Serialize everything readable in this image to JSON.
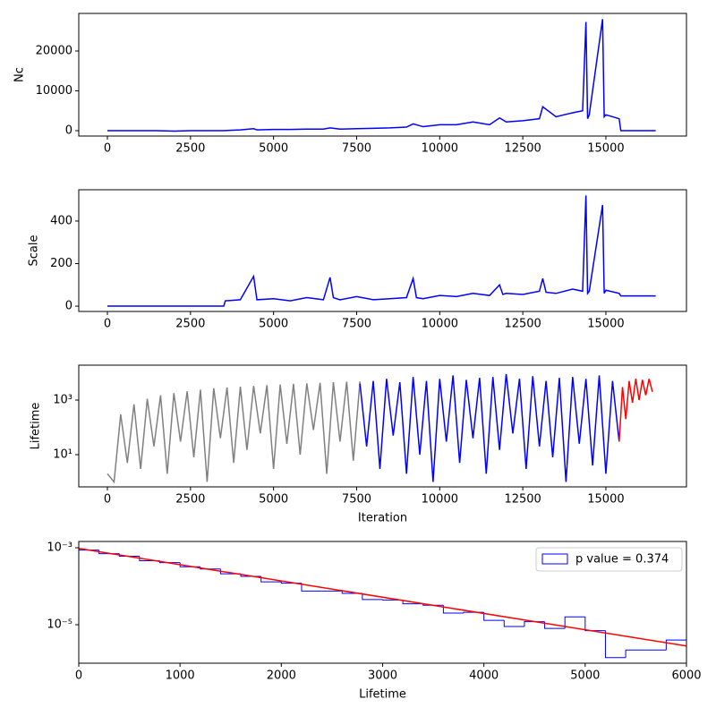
{
  "chart_data": [
    {
      "type": "line",
      "ylabel": "Nc",
      "xlim": [
        -862,
        17425
      ],
      "ylim": [
        -1348,
        29438
      ],
      "xticks": [
        0,
        2500,
        5000,
        7500,
        10000,
        12500,
        15000
      ],
      "yticks": [
        0,
        10000,
        20000
      ],
      "series": [
        {
          "color": "#0000ff",
          "x": [
            0,
            500,
            1000,
            1500,
            2000,
            2500,
            3000,
            3500,
            4000,
            4400,
            4500,
            5000,
            5500,
            6000,
            6500,
            6700,
            7000,
            7500,
            8000,
            8500,
            9000,
            9200,
            9500,
            10000,
            10500,
            11000,
            11500,
            11800,
            12000,
            12500,
            13000,
            13100,
            13500,
            14000,
            14300,
            14400,
            14450,
            14500,
            14900,
            14950,
            15000,
            15400,
            15450,
            16500
          ],
          "values": [
            0,
            0,
            0,
            0,
            -100,
            0,
            0,
            0,
            200,
            500,
            200,
            300,
            300,
            400,
            400,
            700,
            400,
            500,
            600,
            700,
            900,
            1700,
            1000,
            1500,
            1500,
            2200,
            1500,
            3200,
            2200,
            2500,
            3000,
            6000,
            3500,
            4500,
            5000,
            27300,
            3000,
            4000,
            28000,
            3500,
            4000,
            3000,
            0,
            0
          ]
        }
      ]
    },
    {
      "type": "line",
      "ylabel": "Scale",
      "xlim": [
        -862,
        17425
      ],
      "ylim": [
        -25,
        547
      ],
      "xticks": [
        0,
        2500,
        5000,
        7500,
        10000,
        12500,
        15000
      ],
      "yticks": [
        0,
        200,
        400
      ],
      "series": [
        {
          "color": "#0000ff",
          "x": [
            0,
            3500,
            3550,
            4000,
            4400,
            4500,
            5000,
            5500,
            6000,
            6500,
            6700,
            6800,
            7000,
            7500,
            8000,
            8500,
            9000,
            9200,
            9300,
            9500,
            10000,
            10500,
            11000,
            11500,
            11800,
            11900,
            12000,
            12500,
            13000,
            13100,
            13200,
            13500,
            14000,
            14300,
            14400,
            14450,
            14500,
            14900,
            14950,
            15000,
            15400,
            15450,
            16500
          ],
          "values": [
            0,
            0,
            25,
            30,
            140,
            30,
            35,
            25,
            40,
            30,
            135,
            40,
            30,
            45,
            30,
            35,
            40,
            130,
            40,
            35,
            50,
            45,
            60,
            50,
            100,
            55,
            60,
            55,
            70,
            130,
            65,
            60,
            80,
            70,
            520,
            60,
            70,
            475,
            60,
            75,
            60,
            48,
            48
          ]
        }
      ]
    },
    {
      "type": "line",
      "ylabel": "Lifetime",
      "xlabel": "Iteration",
      "yscale": "log",
      "xlim": [
        -862,
        17425
      ],
      "ylim": [
        0.66,
        19000
      ],
      "xticks": [
        0,
        2500,
        5000,
        7500,
        10000,
        12500,
        15000
      ],
      "yticks": [
        {
          "value": 10,
          "label": "10¹"
        },
        {
          "value": 1000,
          "label": "10³"
        }
      ],
      "series": [
        {
          "color": "#808080",
          "x": [
            0,
            200,
            400,
            600,
            800,
            1000,
            1200,
            1400,
            1600,
            1800,
            2000,
            2200,
            2400,
            2600,
            2800,
            3000,
            3200,
            3400,
            3600,
            3800,
            4000,
            4200,
            4400,
            4600,
            4800,
            5000,
            5200,
            5400,
            5600,
            5800,
            6000,
            6200,
            6400,
            6600,
            6800,
            7000,
            7200,
            7400,
            7600
          ],
          "values": [
            2,
            1,
            300,
            5,
            700,
            3,
            1100,
            20,
            1500,
            2,
            1800,
            30,
            2100,
            8,
            2400,
            1,
            2700,
            40,
            2900,
            5,
            3100,
            15,
            3300,
            60,
            3500,
            3,
            3700,
            25,
            3900,
            10,
            4100,
            80,
            4300,
            2,
            4500,
            30,
            4700,
            6,
            4800
          ]
        },
        {
          "color": "#0000ff",
          "x": [
            7600,
            7800,
            8000,
            8200,
            8400,
            8600,
            8800,
            9000,
            9200,
            9400,
            9600,
            9800,
            10000,
            10200,
            10400,
            10600,
            10800,
            11000,
            11200,
            11400,
            11600,
            11800,
            12000,
            12200,
            12400,
            12600,
            12800,
            13000,
            13200,
            13400,
            13600,
            13800,
            14000,
            14200,
            14400,
            14600,
            14800,
            15000,
            15200,
            15400
          ],
          "values": [
            4000,
            20,
            5000,
            3,
            6000,
            50,
            4500,
            2,
            7000,
            10,
            5000,
            1,
            6000,
            30,
            8000,
            5,
            5500,
            40,
            6500,
            2,
            7000,
            15,
            9000,
            60,
            6000,
            3,
            7500,
            20,
            5000,
            8,
            6500,
            1,
            7000,
            25,
            6000,
            4,
            8000,
            2,
            5000,
            30
          ]
        },
        {
          "color": "#ff0000",
          "x": [
            15400,
            15500,
            15600,
            15700,
            15800,
            15900,
            16000,
            16100,
            16200,
            16300,
            16400
          ],
          "values": [
            30,
            3000,
            200,
            5000,
            800,
            6000,
            1000,
            5500,
            1500,
            6000,
            2000
          ]
        }
      ]
    },
    {
      "type": "histogram",
      "xlabel": "Lifetime",
      "yscale": "log",
      "xlim": [
        0,
        6000
      ],
      "ylim": [
        1e-06,
        0.001456
      ],
      "xticks": [
        0,
        1000,
        2000,
        3000,
        4000,
        5000,
        6000
      ],
      "yticks": [
        {
          "value": 1e-05,
          "label": "10⁻⁵"
        },
        {
          "value": 0.001,
          "label": "10⁻³"
        }
      ],
      "color": "#0000ff",
      "label": "p value = 0.374",
      "legend": "upper right",
      "bins": [
        0,
        200,
        400,
        600,
        800,
        1000,
        1200,
        1400,
        1600,
        1800,
        2000,
        2200,
        2400,
        2600,
        2800,
        3000,
        3200,
        3400,
        3600,
        3800,
        4000,
        4200,
        4400,
        4600,
        4800,
        5000,
        5200,
        5400,
        5600,
        5800,
        6000
      ],
      "values": [
        0.00087,
        0.0007,
        0.0006,
        0.00046,
        0.00041,
        0.00032,
        0.00028,
        0.00021,
        0.00018,
        0.00013,
        0.00012,
        7.5e-05,
        7.5e-05,
        6.5e-05,
        4.5e-05,
        4.4e-05,
        3.5e-05,
        3.2e-05,
        2e-05,
        2.1e-05,
        1.3e-05,
        9e-06,
        1.2e-05,
        8e-06,
        1.6e-05,
        7e-06,
        1.4e-06,
        2.2e-06,
        2.2e-06,
        4e-06
      ],
      "fit": {
        "color": "#ff0000",
        "x": [
          0,
          6000
        ],
        "values": [
          0.00096,
          2.8e-06
        ]
      }
    }
  ]
}
